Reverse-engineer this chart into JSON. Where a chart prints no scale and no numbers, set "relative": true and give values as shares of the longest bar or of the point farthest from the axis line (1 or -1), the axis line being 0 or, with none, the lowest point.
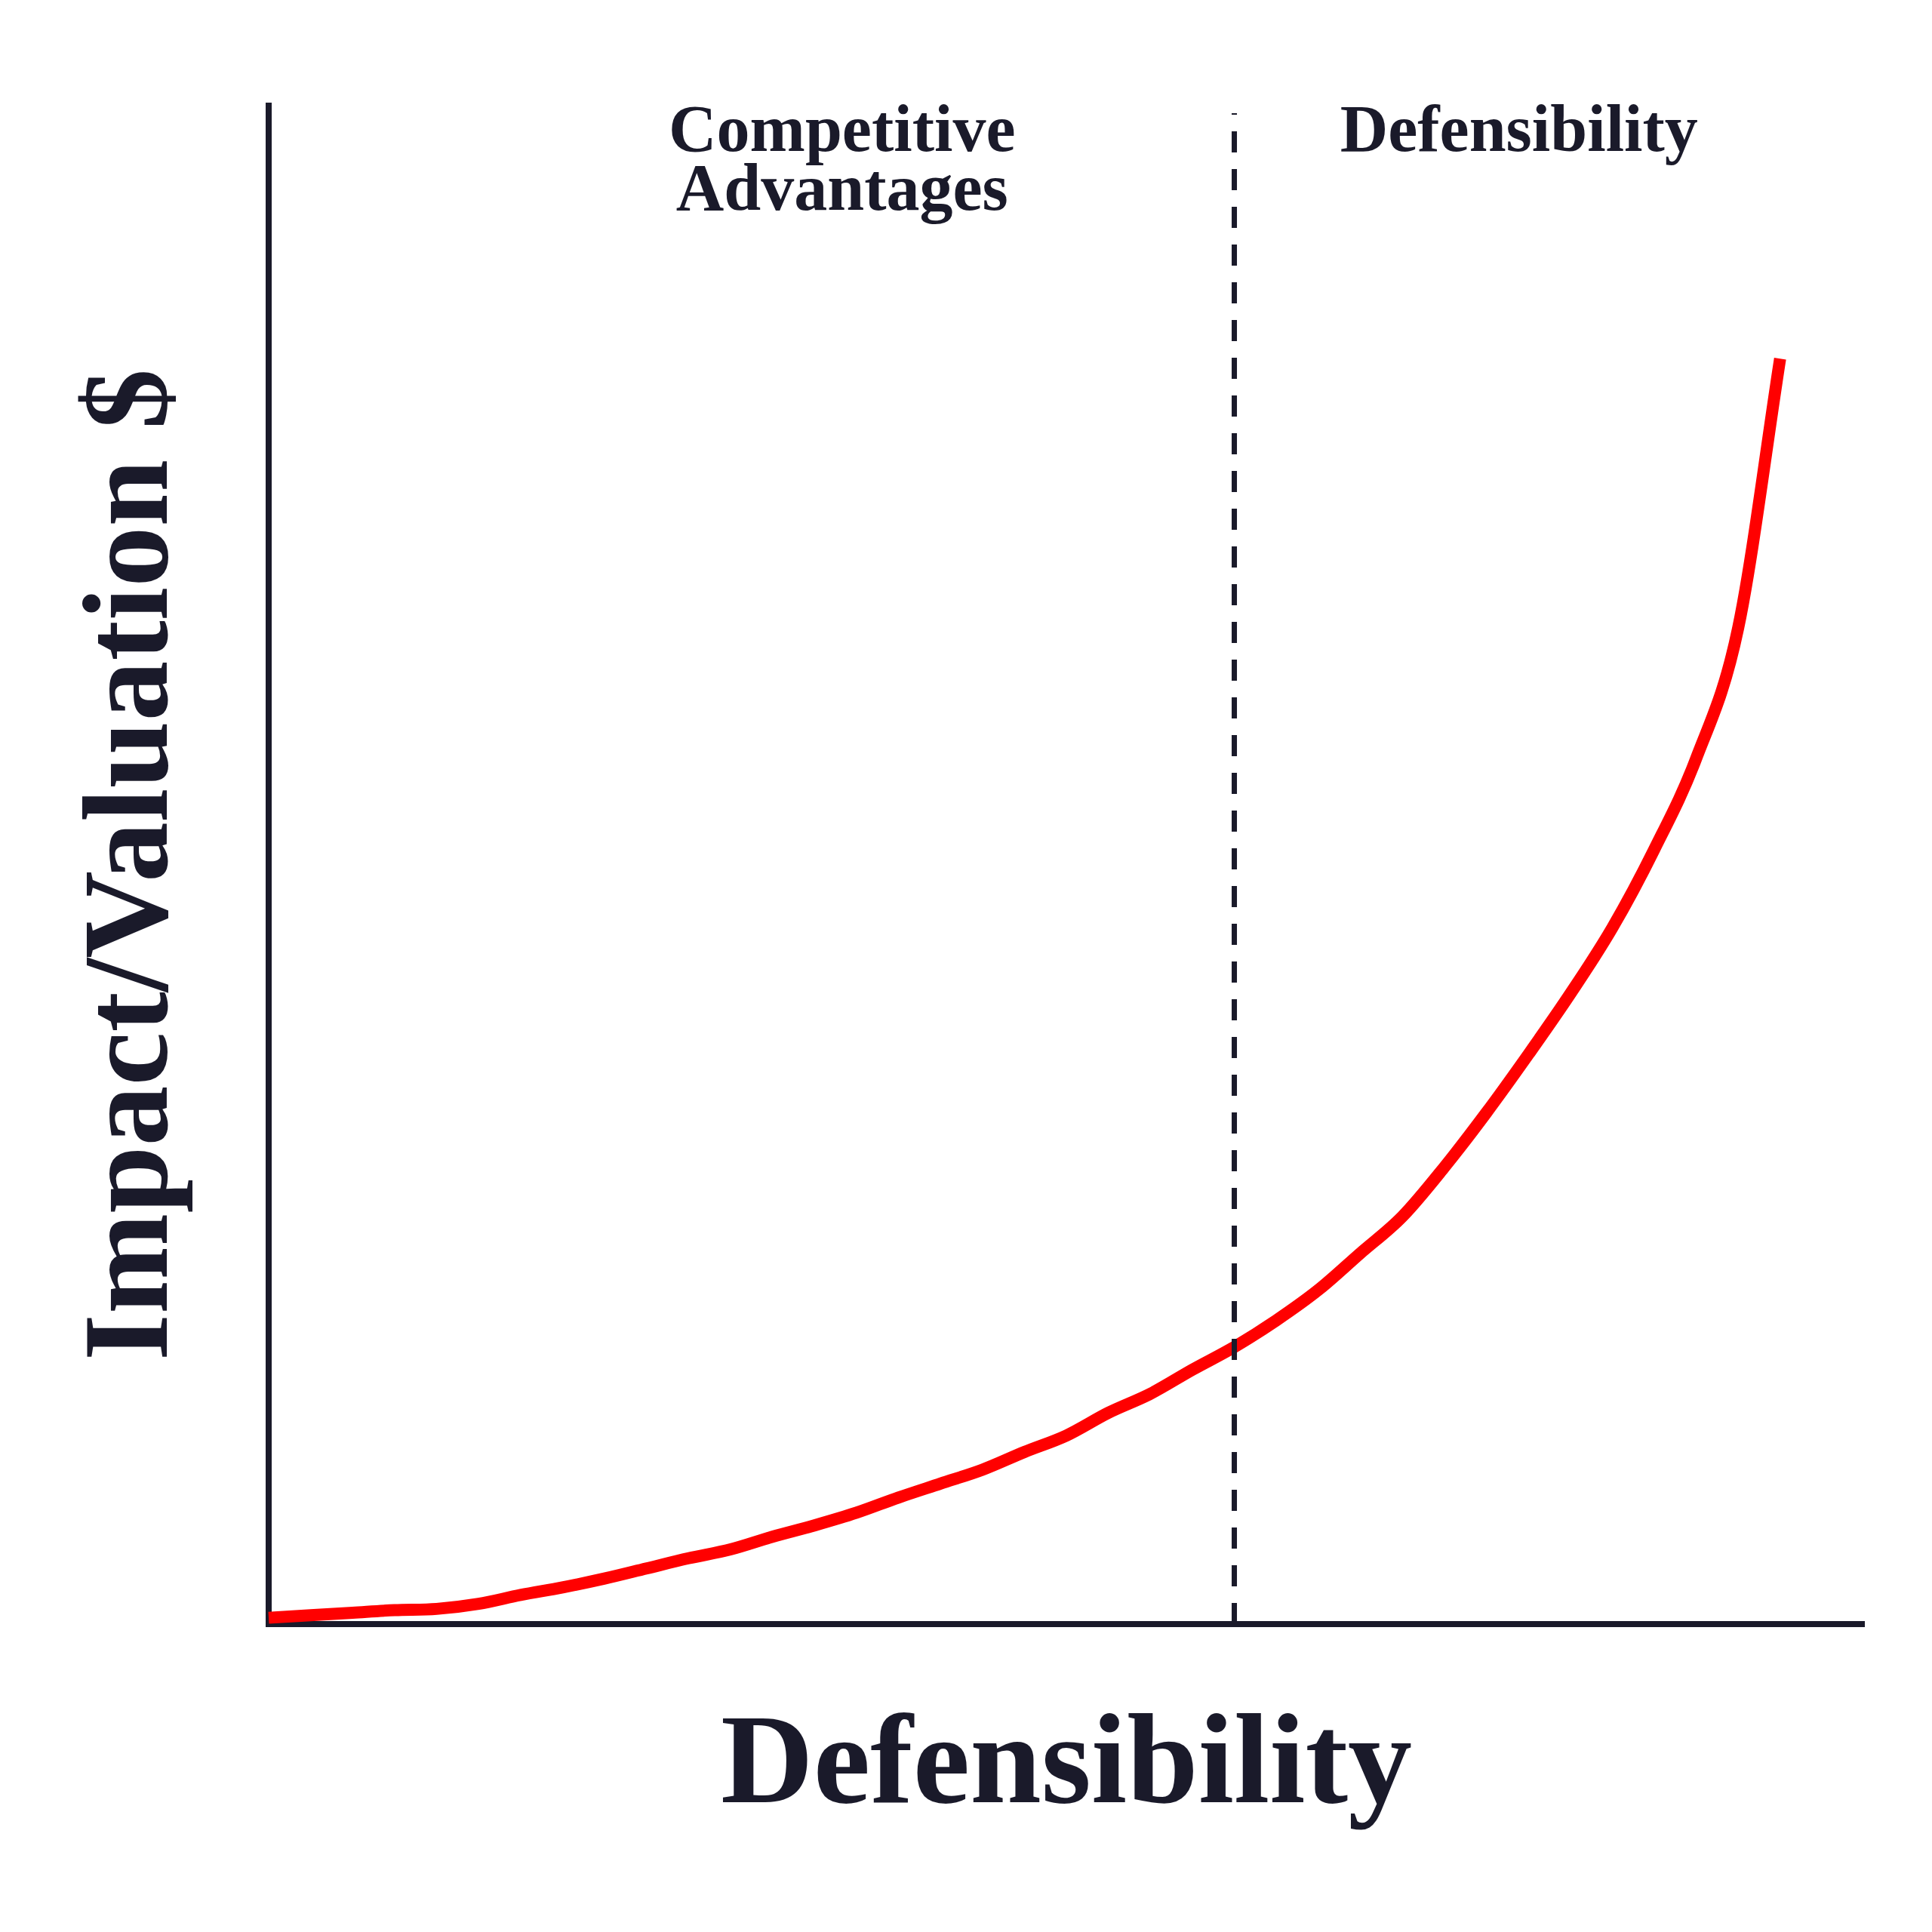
{
  "chart_data": {
    "type": "line",
    "relative": true,
    "xlabel": "Defensibility",
    "ylabel": "Impact/Valuation $",
    "annotations": [
      "Competitive Advantages",
      "Defensibility"
    ],
    "categories": [
      null,
      null,
      null,
      null,
      null,
      null,
      null,
      null,
      null,
      null,
      null,
      null,
      null,
      null,
      null,
      null,
      null,
      null,
      null,
      null,
      null,
      null,
      null,
      null,
      null,
      null,
      null,
      null,
      null,
      null,
      null,
      null,
      null,
      null,
      null,
      null,
      null,
      null,
      null
    ],
    "series": [
      {
        "color": "#ff0000",
        "values": [
          0.005,
          0.007,
          0.009,
          0.011,
          0.012,
          0.016,
          0.023,
          0.029,
          0.036,
          0.044,
          0.052,
          0.059,
          0.069,
          0.078,
          0.088,
          0.1,
          0.111,
          0.122,
          0.136,
          0.149,
          0.167,
          0.182,
          0.201,
          0.219,
          0.24,
          0.264,
          0.293,
          0.322,
          0.361,
          0.404,
          0.45,
          0.498,
          0.55,
          0.612,
          0.684,
          0.787,
          1,
          null,
          null
        ]
      }
    ],
    "grid": false,
    "legend": false,
    "marker": "none",
    "line_style": "solid"
  }
}
